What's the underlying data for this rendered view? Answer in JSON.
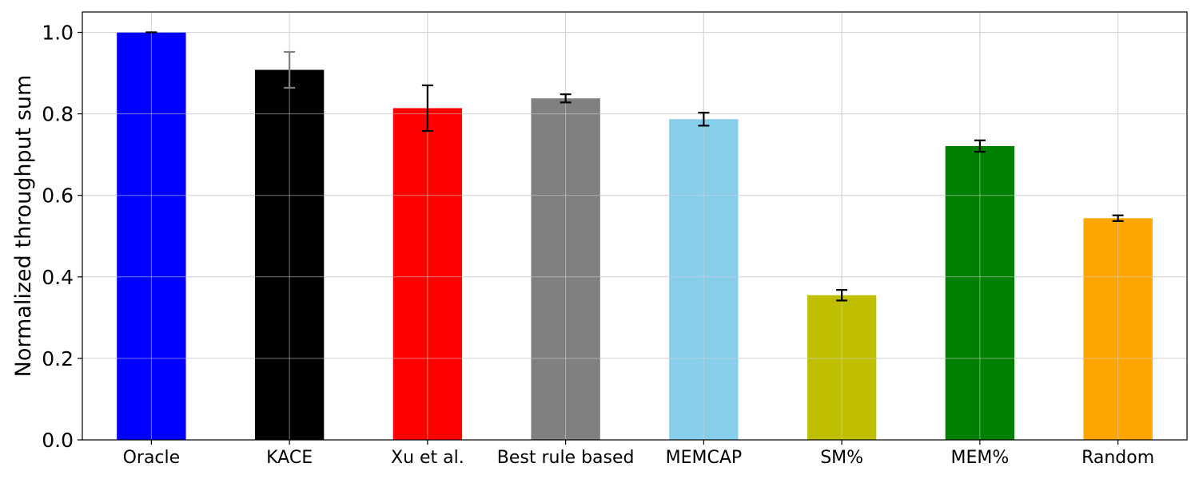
{
  "chart_data": {
    "type": "bar",
    "title": "",
    "xlabel": "",
    "ylabel": "Normalized throughput sum",
    "ylim": [
      0,
      1.05
    ],
    "yticks": [
      "0.0",
      "0.2",
      "0.4",
      "0.6",
      "0.8",
      "1.0"
    ],
    "grid": true,
    "legend": "none",
    "categories": [
      "Oracle",
      "KACE",
      "Xu et al.",
      "Best rule based",
      "MEMCAP",
      "SM%",
      "MEM%",
      "Random"
    ],
    "values": [
      1.0,
      0.908,
      0.814,
      0.838,
      0.787,
      0.355,
      0.721,
      0.544
    ],
    "errors": [
      0.0,
      0.044,
      0.056,
      0.01,
      0.016,
      0.013,
      0.014,
      0.007
    ],
    "colors": [
      "#0000ff",
      "#000000",
      "#ff0000",
      "#808080",
      "#87ceeb",
      "#bfbf00",
      "#008000",
      "#ffa500"
    ],
    "error_colors": [
      "#000000",
      "#808080",
      "#000000",
      "#000000",
      "#000000",
      "#000000",
      "#000000",
      "#000000"
    ]
  }
}
